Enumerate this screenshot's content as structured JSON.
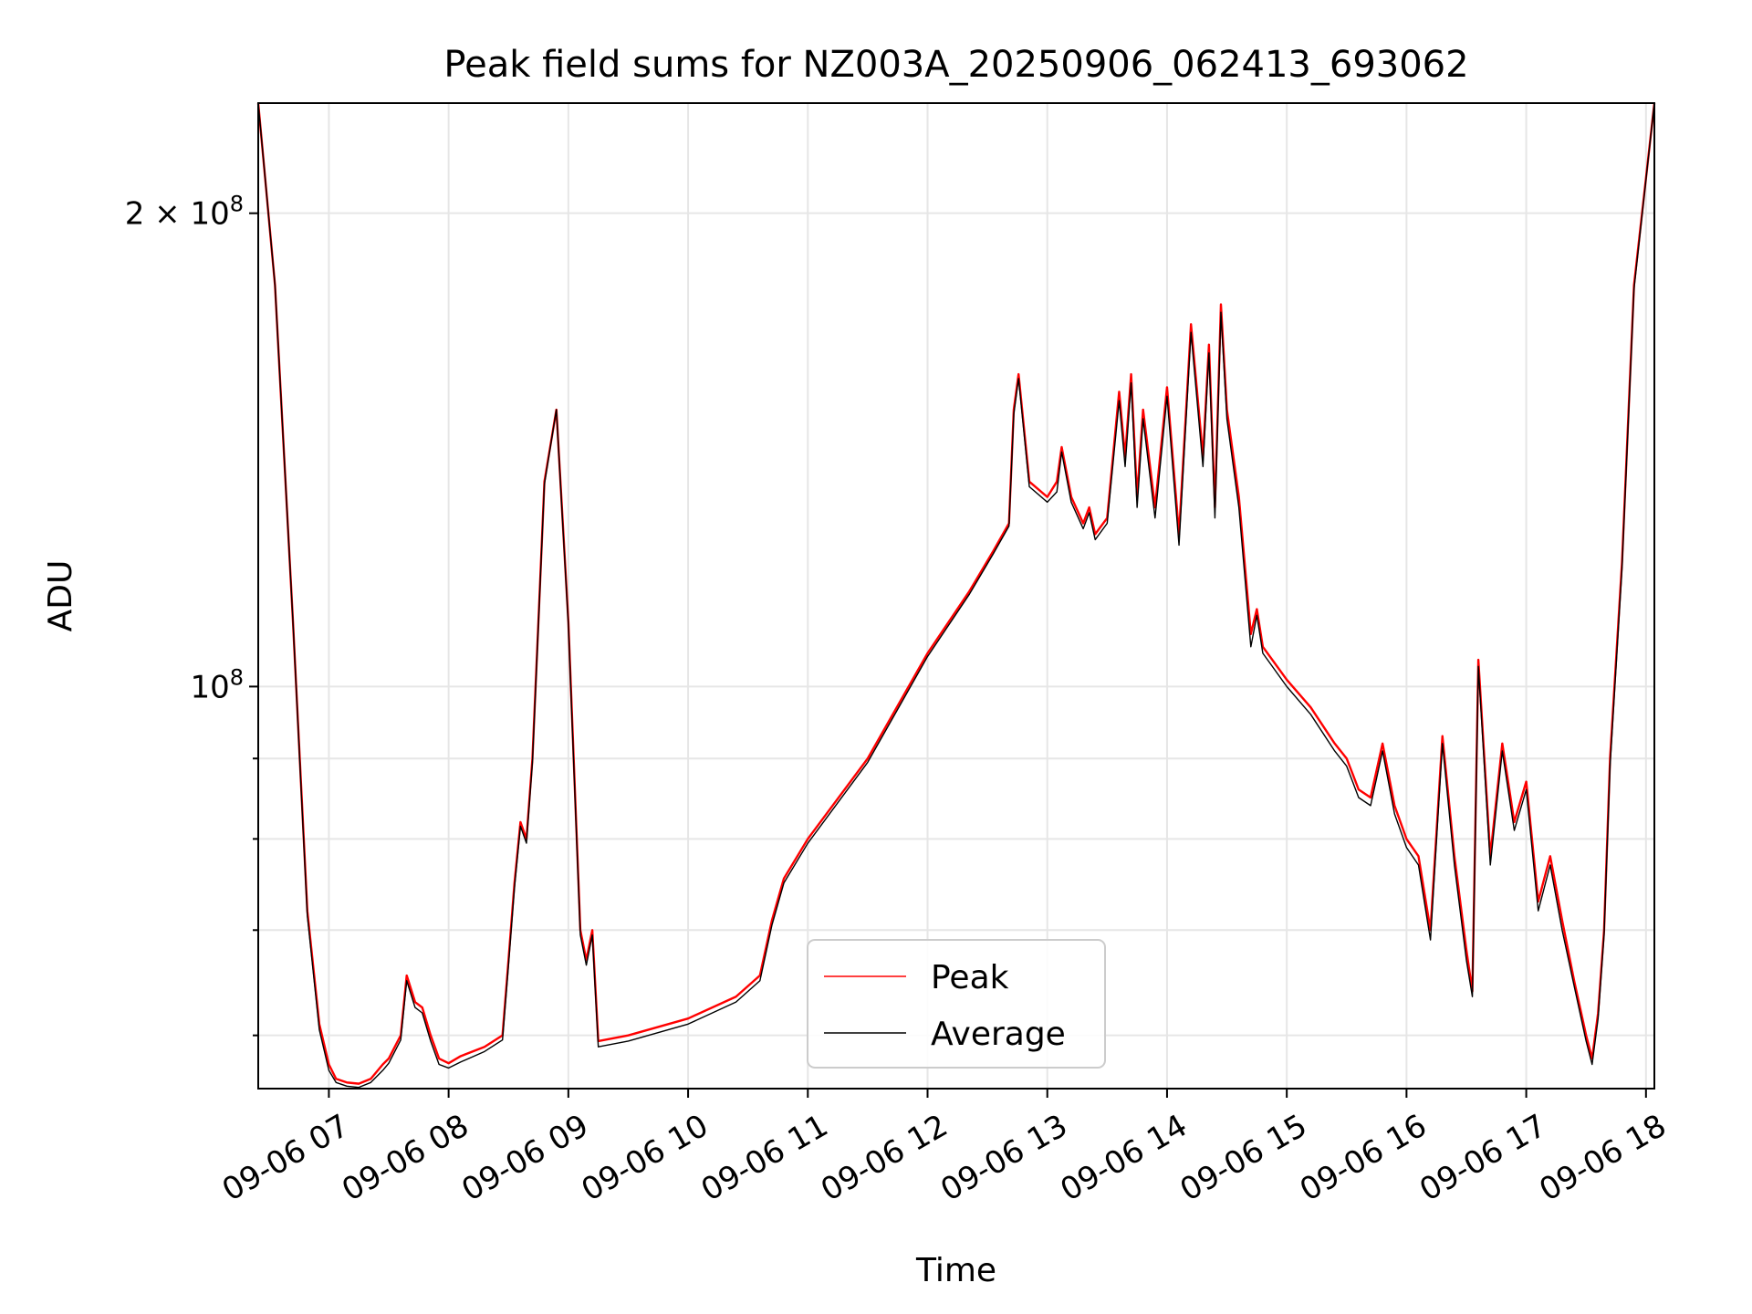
{
  "chart_data": {
    "type": "line",
    "title": "Peak field sums for NZ003A_20250906_062413_693062",
    "xlabel": "Time",
    "ylabel": "ADU",
    "x_unit": "hours",
    "xlim": [
      6.41,
      18.07
    ],
    "ylim": [
      55500000,
      235000000
    ],
    "yscale": "log",
    "grid": true,
    "legend_position": "lower center",
    "x_ticks": [
      {
        "value": 7,
        "label": "09-06 07"
      },
      {
        "value": 8,
        "label": "09-06 08"
      },
      {
        "value": 9,
        "label": "09-06 09"
      },
      {
        "value": 10,
        "label": "09-06 10"
      },
      {
        "value": 11,
        "label": "09-06 11"
      },
      {
        "value": 12,
        "label": "09-06 12"
      },
      {
        "value": 13,
        "label": "09-06 13"
      },
      {
        "value": 14,
        "label": "09-06 14"
      },
      {
        "value": 15,
        "label": "09-06 15"
      },
      {
        "value": 16,
        "label": "09-06 16"
      },
      {
        "value": 17,
        "label": "09-06 17"
      },
      {
        "value": 18,
        "label": "09-06 18"
      }
    ],
    "y_major_ticks": [
      {
        "value": 100000000,
        "base": "10",
        "exp": "8",
        "coef": ""
      },
      {
        "value": 200000000,
        "base": "10",
        "exp": "8",
        "coef": "2 × "
      }
    ],
    "y_minor_ticks": [
      60000000,
      70000000,
      80000000,
      90000000
    ],
    "series": [
      {
        "name": "Peak",
        "color": "#ff0000",
        "x": [
          6.41,
          6.55,
          6.7,
          6.82,
          6.92,
          7.0,
          7.06,
          7.15,
          7.25,
          7.35,
          7.45,
          7.5,
          7.6,
          7.65,
          7.72,
          7.78,
          7.85,
          7.92,
          8.0,
          8.1,
          8.3,
          8.45,
          8.5,
          8.55,
          8.6,
          8.65,
          8.7,
          8.75,
          8.8,
          8.9,
          9.0,
          9.1,
          9.15,
          9.2,
          9.25,
          9.5,
          10.0,
          10.4,
          10.6,
          10.7,
          10.8,
          11.0,
          11.5,
          12.0,
          12.35,
          12.55,
          12.68,
          12.72,
          12.76,
          12.85,
          13.0,
          13.08,
          13.12,
          13.2,
          13.3,
          13.35,
          13.4,
          13.5,
          13.6,
          13.65,
          13.7,
          13.75,
          13.8,
          13.9,
          14.0,
          14.1,
          14.2,
          14.3,
          14.35,
          14.4,
          14.45,
          14.5,
          14.6,
          14.7,
          14.75,
          14.8,
          15.0,
          15.2,
          15.4,
          15.5,
          15.55,
          15.6,
          15.7,
          15.8,
          15.9,
          16.0,
          16.1,
          16.2,
          16.3,
          16.4,
          16.5,
          16.55,
          16.6,
          16.7,
          16.8,
          16.9,
          17.0,
          17.1,
          17.2,
          17.3,
          17.4,
          17.5,
          17.55,
          17.6,
          17.65,
          17.7,
          17.8,
          17.9,
          18.07
        ],
        "y": [
          235000000,
          180000000,
          110000000,
          72000000,
          61000000,
          57500000,
          56300000,
          56000000,
          55900000,
          56300000,
          57500000,
          58000000,
          60000000,
          65500000,
          63000000,
          62500000,
          60000000,
          58000000,
          57600000,
          58200000,
          59000000,
          60000000,
          67000000,
          75000000,
          82000000,
          80000000,
          90000000,
          110000000,
          135000000,
          150000000,
          110000000,
          70000000,
          67000000,
          70000000,
          59500000,
          60000000,
          61500000,
          63500000,
          65500000,
          71000000,
          75500000,
          80000000,
          90000000,
          105000000,
          115000000,
          122000000,
          127000000,
          150000000,
          158000000,
          135000000,
          132000000,
          135000000,
          142000000,
          132000000,
          127000000,
          130000000,
          125000000,
          128000000,
          154000000,
          140000000,
          158000000,
          132000000,
          150000000,
          130000000,
          155000000,
          125000000,
          170000000,
          140000000,
          165000000,
          130000000,
          175000000,
          150000000,
          132000000,
          108000000,
          112000000,
          106000000,
          101000000,
          97000000,
          92000000,
          90000000,
          88000000,
          86000000,
          85000000,
          92000000,
          84000000,
          80000000,
          78000000,
          70000000,
          93000000,
          78000000,
          68000000,
          64000000,
          104000000,
          78000000,
          92000000,
          82000000,
          87000000,
          73000000,
          78000000,
          71000000,
          65000000,
          60000000,
          58000000,
          62000000,
          70000000,
          90000000,
          120000000,
          180000000,
          235000000
        ]
      },
      {
        "name": "Average",
        "color": "#000000",
        "x": [
          6.41,
          6.55,
          6.7,
          6.82,
          6.92,
          7.0,
          7.06,
          7.15,
          7.25,
          7.35,
          7.45,
          7.5,
          7.6,
          7.65,
          7.72,
          7.78,
          7.85,
          7.92,
          8.0,
          8.1,
          8.3,
          8.45,
          8.5,
          8.55,
          8.6,
          8.65,
          8.7,
          8.75,
          8.8,
          8.9,
          9.0,
          9.1,
          9.15,
          9.2,
          9.25,
          9.5,
          10.0,
          10.4,
          10.6,
          10.7,
          10.8,
          11.0,
          11.5,
          12.0,
          12.35,
          12.55,
          12.68,
          12.72,
          12.76,
          12.85,
          13.0,
          13.08,
          13.12,
          13.2,
          13.3,
          13.35,
          13.4,
          13.5,
          13.6,
          13.65,
          13.7,
          13.75,
          13.8,
          13.9,
          14.0,
          14.1,
          14.2,
          14.3,
          14.35,
          14.4,
          14.45,
          14.5,
          14.6,
          14.7,
          14.75,
          14.8,
          15.0,
          15.2,
          15.4,
          15.5,
          15.55,
          15.6,
          15.7,
          15.8,
          15.9,
          16.0,
          16.1,
          16.2,
          16.3,
          16.4,
          16.5,
          16.55,
          16.6,
          16.7,
          16.8,
          16.9,
          17.0,
          17.1,
          17.2,
          17.3,
          17.4,
          17.5,
          17.55,
          17.6,
          17.65,
          17.7,
          17.8,
          17.9,
          18.07
        ],
        "y": [
          235000000,
          180000000,
          110000000,
          71500000,
          60500000,
          57000000,
          56000000,
          55700000,
          55600000,
          56000000,
          57000000,
          57600000,
          59600000,
          65000000,
          62500000,
          62000000,
          59500000,
          57500000,
          57200000,
          57700000,
          58600000,
          59600000,
          66500000,
          74500000,
          81500000,
          79500000,
          89500000,
          109500000,
          134500000,
          150000000,
          109500000,
          69500000,
          66500000,
          69500000,
          59000000,
          59500000,
          61000000,
          63000000,
          65000000,
          70500000,
          75000000,
          79500000,
          89500000,
          104500000,
          114500000,
          121500000,
          126500000,
          149000000,
          157000000,
          134000000,
          131000000,
          133000000,
          141000000,
          131000000,
          126000000,
          129000000,
          124000000,
          127000000,
          152000000,
          138000000,
          156000000,
          130000000,
          148000000,
          128000000,
          153000000,
          123000000,
          168000000,
          138000000,
          163000000,
          128000000,
          173000000,
          148000000,
          130000000,
          106000000,
          111000000,
          105000000,
          100000000,
          96000000,
          91000000,
          89000000,
          87000000,
          85000000,
          84000000,
          91000000,
          83000000,
          79000000,
          77000000,
          69000000,
          92000000,
          77000000,
          67000000,
          63500000,
          103000000,
          77000000,
          91000000,
          81000000,
          86000000,
          72000000,
          77000000,
          70000000,
          64500000,
          59500000,
          57500000,
          61500000,
          69500000,
          89000000,
          119000000,
          179000000,
          235000000
        ]
      }
    ]
  }
}
